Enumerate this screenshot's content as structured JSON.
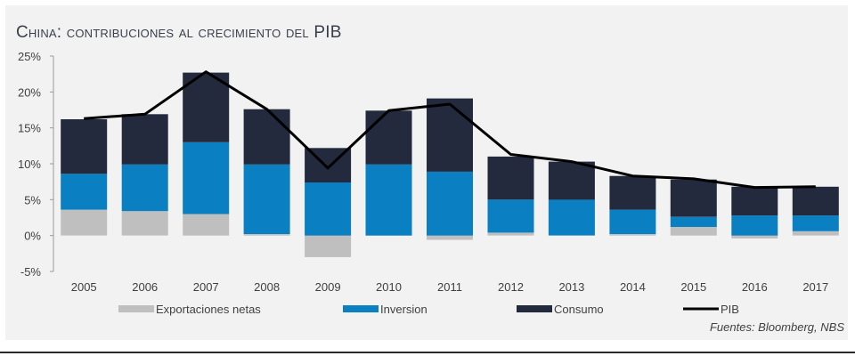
{
  "header": {
    "title": "China: contribuciones al crecimiento del PIB"
  },
  "footer": {
    "source": "Fuentes: Bloomberg, NBS"
  },
  "chart_data": {
    "type": "bar",
    "stacked": true,
    "title": "China: contribuciones al crecimiento del PIB",
    "categories": [
      "2005",
      "2006",
      "2007",
      "2008",
      "2009",
      "2010",
      "2011",
      "2012",
      "2013",
      "2014",
      "2015",
      "2016",
      "2017"
    ],
    "ylim": [
      -5,
      25
    ],
    "yticks": [
      "-5%",
      "0%",
      "5%",
      "10%",
      "15%",
      "20%",
      "25%"
    ],
    "ytick_values": [
      -5,
      0,
      5,
      10,
      15,
      20,
      25
    ],
    "grid": false,
    "legend_position": "bottom",
    "series": [
      {
        "name": "Exportaciones netas",
        "kind": "bar",
        "color": "#bfbfbf",
        "values": [
          3.6,
          3.4,
          3.0,
          0.2,
          -3.0,
          0.0,
          -0.6,
          0.4,
          0.0,
          0.2,
          1.2,
          -0.4,
          0.6
        ]
      },
      {
        "name": "Inversion",
        "kind": "bar",
        "color": "#0a7fc1",
        "values": [
          5.0,
          6.5,
          10.0,
          9.7,
          7.4,
          9.9,
          8.9,
          4.6,
          5.0,
          3.4,
          1.4,
          2.8,
          2.2
        ]
      },
      {
        "name": "Consumo",
        "kind": "bar",
        "color": "#232a3d",
        "values": [
          7.6,
          7.0,
          9.7,
          7.7,
          4.8,
          7.5,
          10.2,
          6.0,
          5.3,
          4.7,
          5.2,
          4.0,
          4.0
        ]
      },
      {
        "name": "PIB",
        "kind": "line",
        "color": "#000000",
        "values": [
          16.3,
          16.9,
          22.8,
          17.6,
          9.4,
          17.4,
          18.3,
          11.3,
          10.3,
          8.3,
          7.9,
          6.7,
          6.8
        ]
      }
    ]
  }
}
